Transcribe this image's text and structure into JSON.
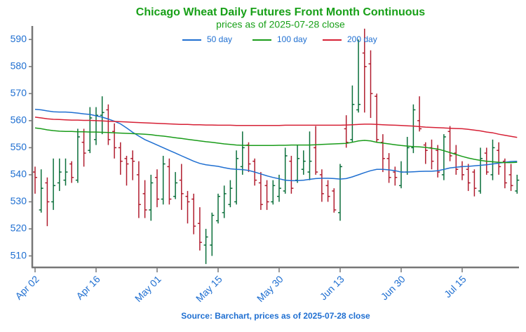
{
  "chart_data": {
    "type": "ohlc",
    "title": "Chicago Wheat Daily Futures Front Month Continuous",
    "subtitle": "prices as of 2025-07-28 close",
    "footer": "Source: Barchart, prices as of 2025-07-28 close",
    "title_color": "#18a018",
    "text_color": "#1f6fd1",
    "up_color": "#0a6e3a",
    "down_color": "#b01c2e",
    "categories": [
      "Apr 02",
      null,
      null,
      null,
      null,
      null,
      null,
      null,
      null,
      null,
      "Apr 16",
      null,
      null,
      null,
      null,
      null,
      null,
      null,
      null,
      null,
      "May 01",
      null,
      null,
      null,
      null,
      null,
      null,
      null,
      null,
      null,
      "May 15",
      null,
      null,
      null,
      null,
      null,
      null,
      null,
      null,
      null,
      "May 30",
      null,
      null,
      null,
      null,
      null,
      null,
      null,
      null,
      null,
      "Jun 13",
      null,
      null,
      null,
      null,
      null,
      null,
      null,
      null,
      null,
      "Jun 30",
      null,
      null,
      null,
      null,
      null,
      null,
      null,
      null,
      null,
      "Jul 15",
      null,
      null,
      null,
      null,
      null,
      null,
      null,
      null,
      null
    ],
    "open": [
      541,
      527,
      537,
      530,
      537,
      538,
      544,
      538,
      552,
      549,
      553,
      562,
      564,
      556,
      550,
      546,
      546,
      540,
      533,
      527,
      539,
      531,
      543,
      532,
      538,
      532,
      531,
      522,
      514,
      514,
      523,
      526,
      529,
      530,
      543,
      551,
      545,
      537,
      536,
      530,
      532,
      534,
      545,
      538,
      542,
      541,
      550,
      540,
      536,
      534,
      526,
      557,
      553,
      564,
      585,
      581,
      569,
      552,
      546,
      541,
      536,
      541,
      550,
      560,
      551,
      550,
      549,
      540,
      556,
      548,
      543,
      542,
      541,
      534,
      548,
      540,
      549,
      545,
      540,
      534
    ],
    "high": [
      543,
      542,
      539,
      546,
      546,
      546,
      545,
      557,
      557,
      565,
      565,
      569,
      566,
      559,
      552,
      547,
      549,
      545,
      538,
      540,
      542,
      547,
      546,
      541,
      544,
      534,
      533,
      528,
      520,
      526,
      533,
      536,
      538,
      549,
      556,
      552,
      546,
      541,
      538,
      538,
      540,
      550,
      547,
      551,
      549,
      556,
      558,
      542,
      538,
      535,
      544,
      562,
      573,
      590,
      594,
      586,
      570,
      555,
      548,
      543,
      545,
      554,
      566,
      569,
      552,
      553,
      551,
      555,
      558,
      551,
      545,
      544,
      542,
      550,
      550,
      553,
      552,
      546,
      544,
      540
    ],
    "low": [
      533,
      526,
      521,
      527,
      534,
      536,
      537,
      537,
      543,
      548,
      551,
      555,
      551,
      546,
      540,
      536,
      538,
      524,
      524,
      523,
      528,
      529,
      529,
      531,
      527,
      522,
      518,
      512,
      507,
      510,
      522,
      524,
      528,
      529,
      540,
      541,
      536,
      527,
      527,
      529,
      530,
      533,
      533,
      537,
      540,
      538,
      540,
      530,
      530,
      526,
      523,
      550,
      552,
      563,
      563,
      561,
      552,
      541,
      537,
      536,
      535,
      540,
      548,
      556,
      544,
      542,
      539,
      538,
      545,
      540,
      538,
      534,
      532,
      533,
      540,
      538,
      540,
      535,
      534,
      533
    ],
    "close": [
      539,
      535,
      530,
      536,
      541,
      541,
      539,
      554,
      548,
      561,
      562,
      563,
      553,
      550,
      545,
      544,
      545,
      529,
      527,
      537,
      531,
      544,
      531,
      537,
      533,
      530,
      521,
      515,
      517,
      525,
      532,
      533,
      535,
      546,
      550,
      544,
      538,
      529,
      530,
      536,
      535,
      547,
      535,
      546,
      545,
      545,
      541,
      533,
      532,
      527,
      543,
      552,
      566,
      566,
      580,
      570,
      553,
      546,
      539,
      539,
      541,
      550,
      564,
      557,
      549,
      545,
      541,
      554,
      547,
      542,
      540,
      537,
      535,
      546,
      541,
      550,
      543,
      537,
      536,
      538
    ],
    "series": [
      {
        "name": "50 day",
        "color": "#1f6fd1",
        "values": [
          564.2,
          564.0,
          563.6,
          563.3,
          563.2,
          563.2,
          563.0,
          562.8,
          562.5,
          562.3,
          561.8,
          561.3,
          560.6,
          559.8,
          558.8,
          557.3,
          555.7,
          554.3,
          553.0,
          552.0,
          551.0,
          550.0,
          549.0,
          548.0,
          547.0,
          546.0,
          545.0,
          544.2,
          543.7,
          543.4,
          543.1,
          542.6,
          542.2,
          542.0,
          541.9,
          541.6,
          541.0,
          540.3,
          539.6,
          539.0,
          538.5,
          538.0,
          537.8,
          537.8,
          538.0,
          538.3,
          538.6,
          538.7,
          538.7,
          538.6,
          538.4,
          538.6,
          539.2,
          540.0,
          540.8,
          541.5,
          542.0,
          542.0,
          541.8,
          541.5,
          541.0,
          541.0,
          541.1,
          541.2,
          541.3,
          541.3,
          541.5,
          542.0,
          542.5,
          542.8,
          543.0,
          543.1,
          543.3,
          543.5,
          543.7,
          544.0,
          544.3,
          544.6,
          544.9,
          545.0
        ]
      },
      {
        "name": "100 day",
        "color": "#1a9c1a",
        "values": [
          557.3,
          557.0,
          556.6,
          556.3,
          556.1,
          556.0,
          556.0,
          555.9,
          555.9,
          555.8,
          555.8,
          555.7,
          555.6,
          555.5,
          555.4,
          555.3,
          555.2,
          555.1,
          555.0,
          554.8,
          554.5,
          554.3,
          554.0,
          553.7,
          553.4,
          553.1,
          552.8,
          552.5,
          552.2,
          552.0,
          551.7,
          551.4,
          551.2,
          551.0,
          550.9,
          550.8,
          550.8,
          550.8,
          550.8,
          550.8,
          550.9,
          550.9,
          551.0,
          551.0,
          551.0,
          551.0,
          551.1,
          551.2,
          551.3,
          551.4,
          551.5,
          551.6,
          552.0,
          552.5,
          552.7,
          552.5,
          552.0,
          551.7,
          551.4,
          551.1,
          550.8,
          550.6,
          550.4,
          550.3,
          550.1,
          549.8,
          549.5,
          548.9,
          548.2,
          547.5,
          546.8,
          546.2,
          545.7,
          545.3,
          545.0,
          544.8,
          544.6,
          544.5,
          544.5,
          544.6
        ]
      },
      {
        "name": "200 day",
        "color": "#d62035",
        "values": [
          561.3,
          561.0,
          560.7,
          560.5,
          560.4,
          560.3,
          560.2,
          560.2,
          560.1,
          560.1,
          560.0,
          559.9,
          559.8,
          559.7,
          559.6,
          559.5,
          559.4,
          559.3,
          559.2,
          559.1,
          559.0,
          558.9,
          558.8,
          558.7,
          558.6,
          558.6,
          558.5,
          558.5,
          558.4,
          558.4,
          558.3,
          558.3,
          558.3,
          558.2,
          558.2,
          558.2,
          558.2,
          558.2,
          558.2,
          558.2,
          558.2,
          558.3,
          558.3,
          558.3,
          558.3,
          558.3,
          558.3,
          558.3,
          558.3,
          558.3,
          558.3,
          558.4,
          558.5,
          558.6,
          558.7,
          558.7,
          558.6,
          558.5,
          558.4,
          558.3,
          558.2,
          558.1,
          558.0,
          557.8,
          557.6,
          557.5,
          557.4,
          557.3,
          557.2,
          557.1,
          557.0,
          556.8,
          556.5,
          556.2,
          555.8,
          555.5,
          555.0,
          554.6,
          554.2,
          553.8
        ]
      }
    ],
    "ylim": [
      506,
      595
    ],
    "yticks": [
      510,
      520,
      530,
      540,
      550,
      560,
      570,
      580,
      590
    ]
  }
}
